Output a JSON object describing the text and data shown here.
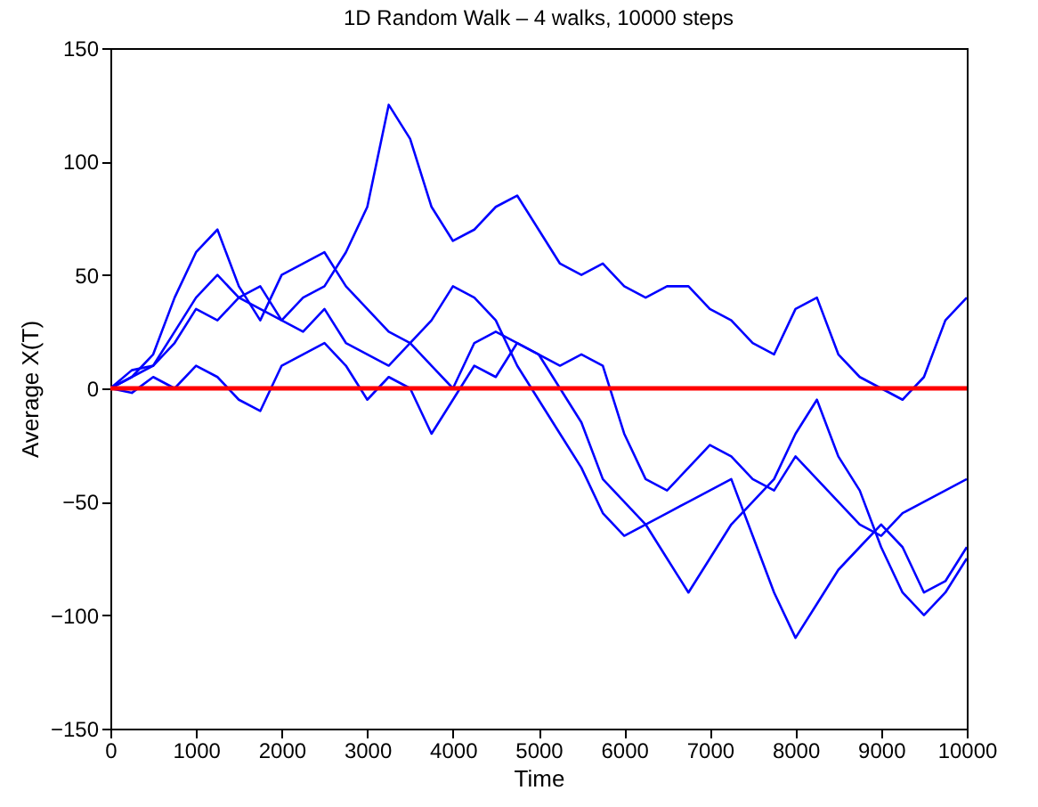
{
  "chart_data": {
    "type": "line",
    "title": "1D Random Walk – 4 walks, 10000 steps",
    "xlabel": "Time",
    "ylabel": "Average X(T)",
    "x": [
      0,
      250,
      500,
      750,
      1000,
      1250,
      1500,
      1750,
      2000,
      2250,
      2500,
      2750,
      3000,
      3250,
      3500,
      3750,
      4000,
      4250,
      4500,
      4750,
      5000,
      5250,
      5500,
      5750,
      6000,
      6250,
      6500,
      6750,
      7000,
      7250,
      7500,
      7750,
      8000,
      8250,
      8500,
      8750,
      9000,
      9250,
      9500,
      9750,
      10000
    ],
    "series": [
      {
        "color": "#0000ff",
        "values": [
          0,
          5,
          10,
          20,
          35,
          30,
          40,
          35,
          30,
          40,
          45,
          60,
          80,
          125,
          110,
          80,
          65,
          70,
          80,
          85,
          70,
          55,
          50,
          55,
          45,
          40,
          45,
          45,
          35,
          30,
          20,
          15,
          35,
          40,
          15,
          5,
          0,
          -5,
          5,
          30,
          40
        ]
      },
      {
        "color": "#0000ff",
        "values": [
          0,
          5,
          15,
          40,
          60,
          70,
          45,
          30,
          50,
          55,
          60,
          45,
          35,
          25,
          20,
          10,
          0,
          20,
          25,
          20,
          15,
          10,
          15,
          10,
          -20,
          -40,
          -45,
          -35,
          -25,
          -30,
          -40,
          -45,
          -30,
          -40,
          -50,
          -60,
          -65,
          -55,
          -50,
          -45,
          -40
        ]
      },
      {
        "color": "#0000ff",
        "values": [
          0,
          -2,
          5,
          0,
          10,
          5,
          -5,
          -10,
          10,
          15,
          20,
          10,
          -5,
          5,
          0,
          -20,
          -5,
          10,
          5,
          20,
          15,
          0,
          -15,
          -40,
          -50,
          -60,
          -55,
          -50,
          -45,
          -40,
          -65,
          -90,
          -110,
          -95,
          -80,
          -70,
          -60,
          -70,
          -90,
          -85,
          -70
        ]
      },
      {
        "color": "#0000ff",
        "values": [
          0,
          8,
          10,
          25,
          40,
          50,
          40,
          45,
          30,
          25,
          35,
          20,
          15,
          10,
          20,
          30,
          45,
          40,
          30,
          10,
          -5,
          -20,
          -35,
          -55,
          -65,
          -60,
          -75,
          -90,
          -75,
          -60,
          -50,
          -40,
          -20,
          -5,
          -30,
          -45,
          -70,
          -90,
          -100,
          -90,
          -75
        ]
      }
    ],
    "ref_lines": [
      {
        "axis": "y",
        "value": 0,
        "color": "#ff0000"
      }
    ],
    "xlim": [
      0,
      10000
    ],
    "xticks": [
      0,
      1000,
      2000,
      3000,
      4000,
      5000,
      6000,
      7000,
      8000,
      9000,
      10000
    ],
    "ylim": [
      -150,
      150
    ],
    "yticks": [
      -150,
      -100,
      -50,
      0,
      50,
      100,
      150
    ],
    "grid": false
  }
}
